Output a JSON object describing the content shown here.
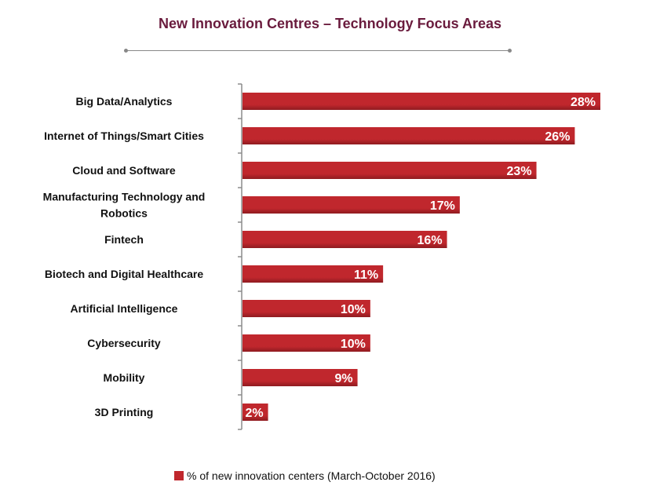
{
  "colors": {
    "bar": "#c0272d",
    "bar_dark": "#8e1b20",
    "title": "#6a1b3d"
  },
  "chart_data": {
    "type": "bar",
    "orientation": "horizontal",
    "title": "New Innovation Centres – Technology Focus Areas",
    "categories": [
      [
        "Big Data/Analytics"
      ],
      [
        "Internet of Things/Smart Cities"
      ],
      [
        "Cloud and Software"
      ],
      [
        "Manufacturing Technology and",
        "Robotics"
      ],
      [
        "Fintech"
      ],
      [
        "Biotech and Digital Healthcare"
      ],
      [
        "Artificial Intelligence"
      ],
      [
        "Cybersecurity"
      ],
      [
        "Mobility"
      ],
      [
        "3D Printing"
      ]
    ],
    "series": [
      {
        "name": "% of new innovation centers (March-October 2016)",
        "values": [
          28,
          26,
          23,
          17,
          16,
          11,
          10,
          10,
          9,
          2
        ]
      }
    ],
    "data_labels": [
      "28%",
      "26%",
      "23%",
      "17%",
      "16%",
      "11%",
      "10%",
      "10%",
      "9%",
      "2%"
    ],
    "xlim": [
      0,
      28
    ],
    "grid": false,
    "legend_position": "bottom"
  }
}
